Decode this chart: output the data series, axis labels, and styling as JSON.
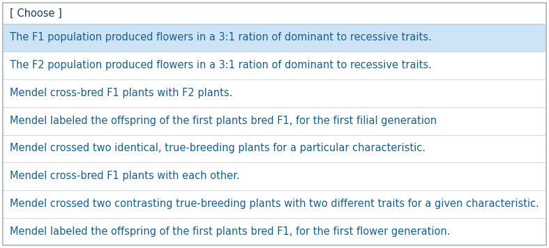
{
  "header": "[ Choose ]",
  "header_color": "#1e3a5c",
  "header_bg": "#ffffff",
  "items": [
    "The F1 population produced flowers in a 3:1 ration of dominant to recessive traits.",
    "The F2 population produced flowers in a 3:1 ration of dominant to recessive traits.",
    "Mendel cross-bred F1 plants with F2 plants.",
    "Mendel labeled the offspring of the first plants bred F1, for the first filial generation",
    "Mendel crossed two identical, true-breeding plants for a particular characteristic.",
    "Mendel cross-bred F1 plants with each other.",
    "Mendel crossed two contrasting true-breeding plants with two different traits for a given characteristic.",
    "Mendel labeled the offspring of the first plants bred F1, for the first flower generation."
  ],
  "item_color": "#1a5f8a",
  "selected_index": 0,
  "selected_bg": "#cce4f5",
  "normal_bg": "#ffffff",
  "border_color": "#b0b8c0",
  "divider_color": "#c8d0d8",
  "font_size": 10.5,
  "header_font_size": 10.5,
  "fig_width": 7.87,
  "fig_height": 3.56,
  "dpi": 100
}
